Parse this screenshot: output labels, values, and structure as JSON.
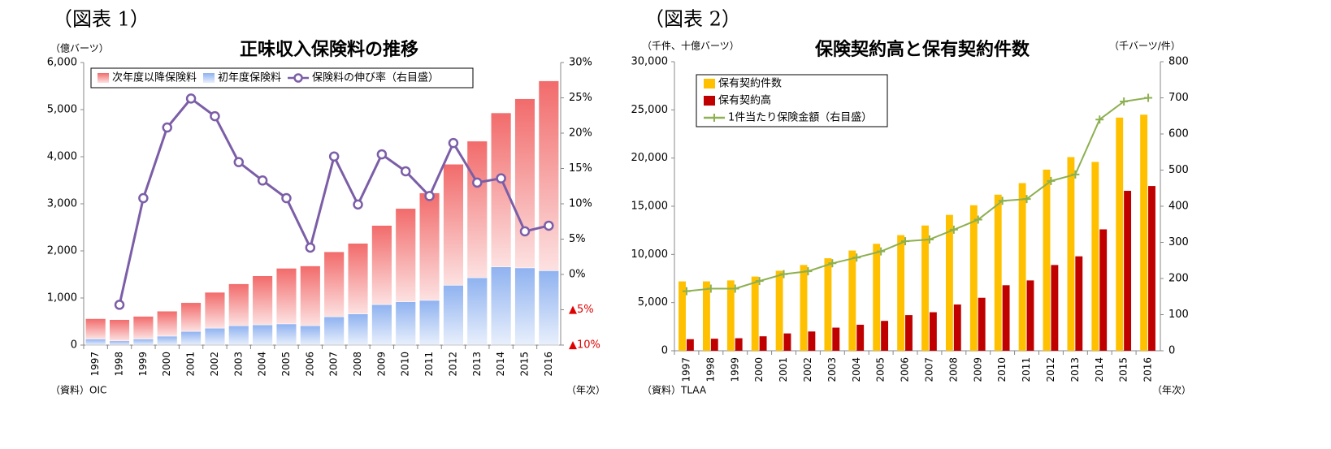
{
  "chart_data": [
    {
      "type": "bar",
      "figure_label": "（図表 1）",
      "title": "正味収入保険料の推移",
      "y_label": "（億バーツ）",
      "x_label": "（年次）",
      "source": "（資料）OIC",
      "stacked": true,
      "legend": "top",
      "categories": [
        "1997",
        "1998",
        "1999",
        "2000",
        "2001",
        "2002",
        "2003",
        "2004",
        "2005",
        "2006",
        "2007",
        "2008",
        "2009",
        "2010",
        "2011",
        "2012",
        "2013",
        "2014",
        "2015",
        "2016"
      ],
      "series": [
        {
          "name": "次年度以降保険料",
          "color": "#f26b6b",
          "values": [
            430,
            450,
            480,
            530,
            610,
            760,
            890,
            1040,
            1180,
            1270,
            1380,
            1500,
            1680,
            1980,
            2280,
            2570,
            2900,
            3270,
            3590,
            4030
          ]
        },
        {
          "name": "初年度保険料",
          "color": "#8fb2f0",
          "values": [
            130,
            90,
            130,
            190,
            290,
            360,
            410,
            430,
            450,
            410,
            600,
            660,
            860,
            920,
            950,
            1270,
            1430,
            1660,
            1640,
            1580
          ]
        },
        {
          "name": "保険料の伸び率（右目盛）",
          "color": "#7b5ea7",
          "type": "line",
          "marker": "circle",
          "axis": "y2",
          "values": [
            null,
            -4.3,
            10.8,
            20.8,
            24.9,
            22.4,
            15.9,
            13.3,
            10.8,
            3.8,
            16.7,
            9.9,
            17.0,
            14.6,
            11.1,
            18.6,
            13.0,
            13.6,
            6.1,
            6.9
          ]
        }
      ],
      "ylim": [
        0,
        6000
      ],
      "yticks": [
        0,
        {
          "value": 1000,
          "label": "1,000"
        },
        {
          "value": 2000,
          "label": "2,000"
        },
        {
          "value": 3000,
          "label": "3,000"
        },
        {
          "value": 4000,
          "label": "4,000"
        },
        {
          "value": 5000,
          "label": "5,000"
        },
        {
          "value": 6000,
          "label": "6,000"
        }
      ],
      "y2lim": [
        -10,
        30
      ],
      "y2ticks": [
        {
          "value": -10,
          "label": "▲10%"
        },
        {
          "value": -5,
          "label": "▲5%"
        },
        {
          "value": 0,
          "label": "0%"
        },
        {
          "value": 5,
          "label": "5%"
        },
        {
          "value": 10,
          "label": "10%"
        },
        {
          "value": 15,
          "label": "15%"
        },
        {
          "value": 20,
          "label": "20%"
        },
        {
          "value": 25,
          "label": "25%"
        },
        {
          "value": 30,
          "label": "30%"
        }
      ]
    },
    {
      "type": "bar",
      "figure_label": "（図表 2）",
      "title": "保険契約高と保有契約件数",
      "y_label": "（千件、十億バーツ）",
      "y2_label": "（千バーツ/件）",
      "x_label": "（年次）",
      "source": "（資料）TLAA",
      "stacked": false,
      "legend": "upper left",
      "categories": [
        "1997",
        "1998",
        "1999",
        "2000",
        "2001",
        "2002",
        "2003",
        "2004",
        "2005",
        "2006",
        "2007",
        "2008",
        "2009",
        "2010",
        "2011",
        "2012",
        "2013",
        "2014",
        "2015",
        "2016"
      ],
      "series": [
        {
          "name": "保有契約件数",
          "color": "#ffc000",
          "values": [
            7200,
            7200,
            7300,
            7700,
            8300,
            8900,
            9600,
            10400,
            11100,
            12000,
            13000,
            14100,
            15100,
            16200,
            17400,
            18800,
            20100,
            19600,
            24200,
            24500
          ]
        },
        {
          "name": "保有契約高",
          "color": "#c00000",
          "values": [
            1200,
            1250,
            1300,
            1500,
            1800,
            2000,
            2400,
            2700,
            3100,
            3700,
            4000,
            4800,
            5500,
            6800,
            7300,
            8900,
            9800,
            12600,
            16600,
            17100
          ]
        },
        {
          "name": "1件当たり保険金額（右目盛）",
          "color": "#8db050",
          "type": "line",
          "marker": "plus",
          "axis": "y2",
          "values": [
            165,
            172,
            172,
            193,
            212,
            220,
            242,
            258,
            275,
            303,
            308,
            335,
            363,
            415,
            420,
            470,
            488,
            640,
            690,
            700
          ]
        }
      ],
      "ylim": [
        0,
        30000
      ],
      "yticks": [
        0,
        {
          "value": 5000,
          "label": "5,000"
        },
        {
          "value": 10000,
          "label": "10,000"
        },
        {
          "value": 15000,
          "label": "15,000"
        },
        {
          "value": 20000,
          "label": "20,000"
        },
        {
          "value": 25000,
          "label": "25,000"
        },
        {
          "value": 30000,
          "label": "30,000"
        }
      ],
      "y2lim": [
        0,
        800
      ],
      "y2ticks": [
        0,
        100,
        200,
        300,
        400,
        500,
        600,
        700,
        800
      ]
    }
  ]
}
